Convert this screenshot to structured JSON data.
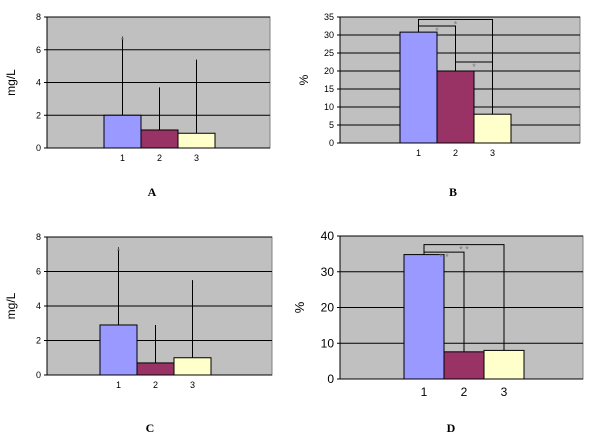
{
  "chart_data": [
    {
      "type": "bar",
      "panel_label": "A",
      "ylabel": "mg/L",
      "ylim": [
        0,
        8
      ],
      "yticks": [
        "0",
        "2",
        "4",
        "6",
        "8"
      ],
      "categories": [
        "1",
        "2",
        "3"
      ],
      "values": [
        2.0,
        1.1,
        0.9
      ],
      "error_upper": [
        6.8,
        3.7,
        5.4
      ],
      "colors": [
        "#9999ff",
        "#993366",
        "#ffffcc"
      ],
      "annotations": [
        {
          "bar": 1,
          "text": "*"
        }
      ],
      "brackets": []
    },
    {
      "type": "bar",
      "panel_label": "B",
      "ylabel": "%",
      "ylim": [
        0,
        35
      ],
      "yticks": [
        "0",
        "5",
        "10",
        "15",
        "20",
        "25",
        "30",
        "35"
      ],
      "categories": [
        "1",
        "2",
        "3"
      ],
      "values": [
        30.8,
        20.0,
        8.0
      ],
      "error_upper": [],
      "colors": [
        "#9999ff",
        "#993366",
        "#ffffcc"
      ],
      "annotations": [],
      "brackets": [
        {
          "from": 1,
          "to": 2,
          "y": 32.5,
          "text": "*"
        },
        {
          "from": 1,
          "to": 3,
          "y": 34.3,
          "text": "*"
        },
        {
          "from": 2,
          "to": 3,
          "y": 22.5,
          "text": "*"
        }
      ]
    },
    {
      "type": "bar",
      "panel_label": "C",
      "ylabel": "mg/L",
      "ylim": [
        0,
        8
      ],
      "yticks": [
        "0",
        "2",
        "4",
        "6",
        "8"
      ],
      "categories": [
        "1",
        "2",
        "3"
      ],
      "values": [
        2.9,
        0.7,
        1.0
      ],
      "error_upper": [
        7.4,
        2.9,
        5.5
      ],
      "colors": [
        "#9999ff",
        "#993366",
        "#ffffcc"
      ],
      "annotations": [
        {
          "bar": 1,
          "text": "*"
        }
      ],
      "brackets": []
    },
    {
      "type": "bar",
      "panel_label": "D",
      "ylabel": "%",
      "ylim": [
        0,
        40
      ],
      "yticks": [
        "0",
        "10",
        "20",
        "30",
        "40"
      ],
      "categories": [
        "1",
        "2",
        "3"
      ],
      "values": [
        34.8,
        7.6,
        8.0
      ],
      "error_upper": [],
      "colors": [
        "#9999ff",
        "#993366",
        "#ffffcc"
      ],
      "annotations": [],
      "brackets": [
        {
          "from": 1,
          "to": 2,
          "y": 35.5,
          "text": "* *"
        },
        {
          "from": 1,
          "to": 3,
          "y": 37.6,
          "text": "* *"
        }
      ]
    }
  ]
}
